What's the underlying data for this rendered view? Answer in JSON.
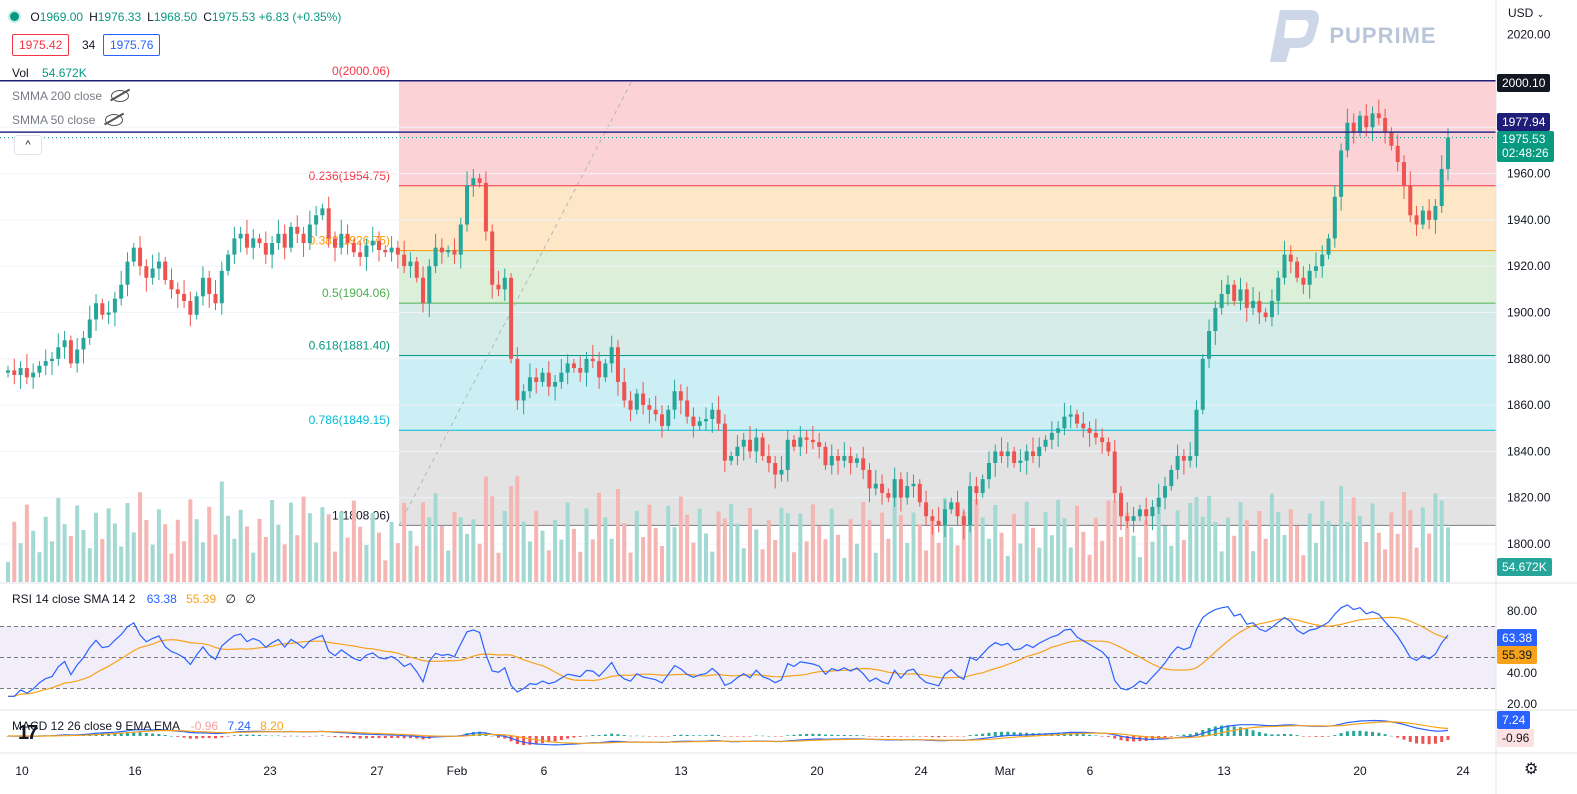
{
  "header": {
    "ohlc": [
      {
        "k": "O",
        "v": "1969.00"
      },
      {
        "k": "H",
        "v": "1976.33"
      },
      {
        "k": "L",
        "v": "1968.50"
      },
      {
        "k": "C",
        "v": "1975.53"
      }
    ],
    "change": "+6.83 (+0.35%)",
    "bid": "1975.42",
    "spread": "34",
    "ask": "1975.76",
    "currency": "USD"
  },
  "brand": {
    "name": "PUPRIME"
  },
  "legend": {
    "vol_label": "Vol",
    "vol_value": "54.672K",
    "smma200": "SMMA 200 close",
    "smma50": "SMMA 50 close"
  },
  "rsi_legend": {
    "label": "RSI 14 close SMA 14 2",
    "rsi": "63.38",
    "sma": "55.39",
    "z1": "∅",
    "z2": "∅"
  },
  "macd_legend": {
    "label": "MACD 12 26 close 9 EMA EMA",
    "hist": "-0.96",
    "macd": "7.24",
    "signal": "8.20"
  },
  "colors": {
    "up": "#26a69a",
    "down": "#ef5350",
    "rsi": "#2962ff",
    "rsi_sma": "#f7a21b",
    "accent": "#131722"
  },
  "price_tags": {
    "level1": "2000.10",
    "level2": "1977.94",
    "last": "1975.53",
    "countdown": "02:48:26",
    "volume": "54.672K",
    "rsi": "63.38",
    "rsi_sma": "55.39",
    "macd": "7.24",
    "macd_hist": "-0.96"
  },
  "chart_data": [
    {
      "type": "candlestick",
      "x_ticks": [
        "10",
        "16",
        "23",
        "27",
        "Feb",
        "6",
        "13",
        "20",
        "24",
        "Mar",
        "6",
        "13",
        "20",
        "24"
      ],
      "y_ticks": [
        2020,
        2000,
        1980,
        1960,
        1940,
        1920,
        1900,
        1880,
        1860,
        1840,
        1820,
        1800
      ],
      "y_tick_labels": [
        "2020.00",
        "2000.00",
        "1980.00",
        "1960.00",
        "1940.00",
        "1920.00",
        "1900.00",
        "1880.00",
        "1860.00",
        "1840.00",
        "1820.00",
        "1800.00"
      ],
      "ylim": [
        1790,
        2025
      ],
      "horizontal_lines": [
        2000.1,
        1977.94
      ],
      "fibonacci": {
        "levels": [
          {
            "ratio": "0",
            "price": 2000.06,
            "label": "0(2000.06)",
            "fill": "#fbd3d6",
            "line": "#f23645"
          },
          {
            "ratio": "0.236",
            "price": 1954.75,
            "label": "0.236(1954.75)",
            "fill": "#fde7c7",
            "line": "#f23645"
          },
          {
            "ratio": "0.382",
            "price": 1926.75,
            "label": "0.382(1926.75)",
            "fill": "#dcefd9",
            "line": "#ff9800"
          },
          {
            "ratio": "0.5",
            "price": 1904.06,
            "label": "0.5(1904.06)",
            "fill": "#d5ece9",
            "line": "#4caf50"
          },
          {
            "ratio": "0.618",
            "price": 1881.4,
            "label": "0.618(1881.40)",
            "fill": "#cbeff4",
            "line": "#089981"
          },
          {
            "ratio": "0.786",
            "price": 1849.15,
            "label": "0.786(1849.15)",
            "fill": "#e3e3e3",
            "line": "#00bcd4"
          },
          {
            "ratio": "1",
            "price": 1808.06,
            "label": "1(1808.06)",
            "fill": "",
            "line": "#787b86"
          }
        ]
      },
      "closes": [
        1875,
        1873,
        1876,
        1872,
        1874,
        1877,
        1879,
        1880,
        1885,
        1888,
        1878,
        1884,
        1889,
        1897,
        1904,
        1899,
        1900,
        1906,
        1912,
        1922,
        1928,
        1920,
        1915,
        1919,
        1922,
        1914,
        1910,
        1908,
        1905,
        1899,
        1907,
        1915,
        1908,
        1904,
        1918,
        1925,
        1932,
        1934,
        1928,
        1932,
        1930,
        1925,
        1930,
        1934,
        1928,
        1937,
        1934,
        1930,
        1938,
        1942,
        1945,
        1932,
        1928,
        1934,
        1930,
        1926,
        1924,
        1929,
        1931,
        1927,
        1926,
        1928,
        1925,
        1920,
        1922,
        1915,
        1904,
        1920,
        1928,
        1926,
        1927,
        1925,
        1938,
        1955,
        1958,
        1956,
        1935,
        1912,
        1910,
        1915,
        1880,
        1862,
        1866,
        1872,
        1870,
        1874,
        1868,
        1870,
        1874,
        1878,
        1876,
        1874,
        1880,
        1879,
        1872,
        1878,
        1885,
        1870,
        1862,
        1858,
        1865,
        1860,
        1858,
        1856,
        1851,
        1858,
        1866,
        1862,
        1855,
        1851,
        1853,
        1854,
        1858,
        1852,
        1836,
        1838,
        1842,
        1845,
        1840,
        1846,
        1838,
        1835,
        1830,
        1832,
        1845,
        1842,
        1846,
        1845,
        1844,
        1842,
        1834,
        1838,
        1836,
        1838,
        1835,
        1837,
        1832,
        1824,
        1826,
        1822,
        1820,
        1828,
        1820,
        1825,
        1826,
        1818,
        1812,
        1810,
        1808,
        1815,
        1818,
        1812,
        1808,
        1825,
        1822,
        1828,
        1835,
        1840,
        1838,
        1840,
        1835,
        1836,
        1840,
        1838,
        1842,
        1845,
        1848,
        1850,
        1855,
        1856,
        1852,
        1850,
        1848,
        1846,
        1844,
        1840,
        1822,
        1812,
        1810,
        1812,
        1815,
        1812,
        1816,
        1820,
        1825,
        1832,
        1838,
        1836,
        1838,
        1858,
        1880,
        1892,
        1902,
        1908,
        1912,
        1905,
        1910,
        1902,
        1905,
        1900,
        1898,
        1905,
        1915,
        1925,
        1922,
        1915,
        1912,
        1918,
        1920,
        1925,
        1932,
        1950,
        1970,
        1982,
        1978,
        1985,
        1980,
        1986,
        1984,
        1978,
        1972,
        1965,
        1955,
        1942,
        1938,
        1944,
        1940,
        1946,
        1962,
        1975.53
      ]
    },
    {
      "type": "line",
      "name": "RSI",
      "ylim": [
        15,
        90
      ],
      "y_ticks": [
        80,
        40,
        20
      ],
      "y_tick_labels": [
        "80.00",
        "40.00",
        "20.00"
      ],
      "bands": {
        "upper": 70,
        "middle": 50,
        "lower": 30
      }
    },
    {
      "type": "line",
      "name": "MACD"
    }
  ]
}
